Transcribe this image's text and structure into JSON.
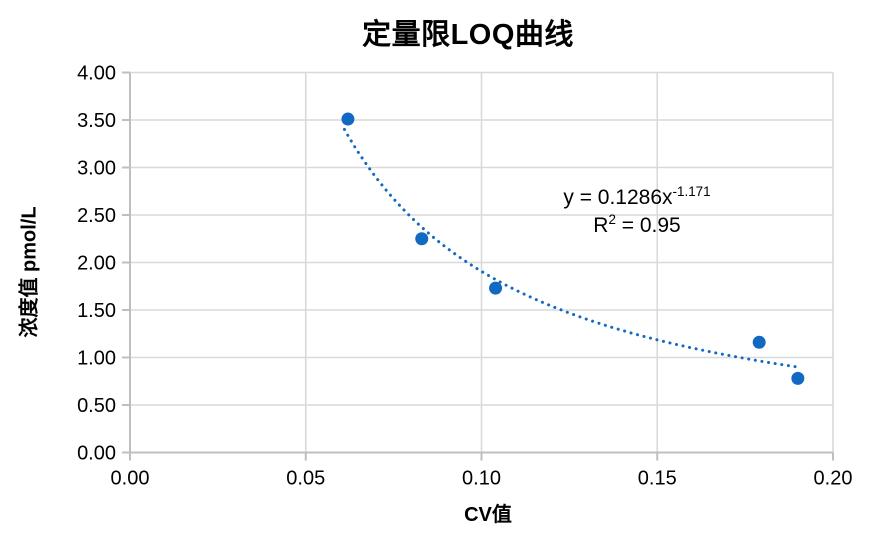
{
  "page": {
    "background": "#FFFFFF"
  },
  "chart_data": {
    "type": "scatter",
    "title": "定量限LOQ曲线",
    "xlabel": "CV值",
    "ylabel": "浓度值 pmol/L",
    "xlim": [
      0,
      0.2
    ],
    "ylim": [
      0,
      4.0
    ],
    "grid": "both",
    "legend": "none",
    "x_ticks": [
      {
        "value": 0.0,
        "label": "0.00"
      },
      {
        "value": 0.05,
        "label": "0.05"
      },
      {
        "value": 0.1,
        "label": "0.10"
      },
      {
        "value": 0.15,
        "label": "0.15"
      },
      {
        "value": 0.2,
        "label": "0.20"
      }
    ],
    "y_ticks": [
      {
        "value": 0.0,
        "label": "0.00"
      },
      {
        "value": 0.5,
        "label": "0.50"
      },
      {
        "value": 1.0,
        "label": "1.00"
      },
      {
        "value": 1.5,
        "label": "1.50"
      },
      {
        "value": 2.0,
        "label": "2.00"
      },
      {
        "value": 2.5,
        "label": "2.50"
      },
      {
        "value": 3.0,
        "label": "3.00"
      },
      {
        "value": 3.5,
        "label": "3.50"
      },
      {
        "value": 4.0,
        "label": "4.00"
      }
    ],
    "points": [
      {
        "x": 0.062,
        "y": 3.51
      },
      {
        "x": 0.083,
        "y": 2.25
      },
      {
        "x": 0.104,
        "y": 1.73
      },
      {
        "x": 0.179,
        "y": 1.16
      },
      {
        "x": 0.19,
        "y": 0.78
      }
    ],
    "trendline": {
      "kind": "power",
      "a": 0.1286,
      "b": -1.171,
      "x_start": 0.061,
      "x_end": 0.19,
      "style": "dotted"
    },
    "equation": {
      "lhs": "y = 0.1286x",
      "exp": "-1.171",
      "r2_lhs": "R",
      "r2_sup": "2",
      "r2_rhs": " = 0.95"
    },
    "colors": {
      "series": "#1169C2",
      "gridline": "#D9D9D9",
      "axis_line": "#BFBFBF",
      "text": "#000000"
    }
  }
}
